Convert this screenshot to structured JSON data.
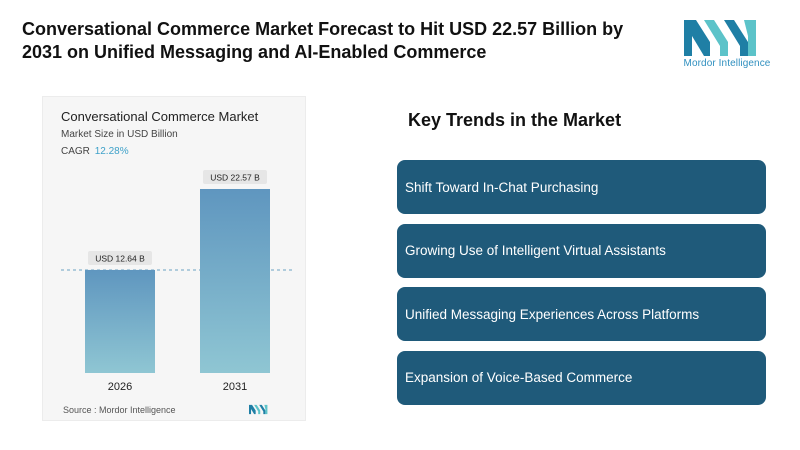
{
  "headline": "Conversational Commerce Market Forecast to Hit USD 22.57 Billion by 2031 on Unified Messaging and AI-Enabled Commerce",
  "brand": {
    "name": "Mordor Intelligence",
    "logo_icon": "mordor-intelligence-logo"
  },
  "chart_card": {
    "title": "Conversational Commerce Market",
    "subtitle": "Market Size in USD Billion",
    "cagr_label": "CAGR",
    "cagr_value": "12.28%",
    "source": "Source : Mordor Intelligence"
  },
  "chart_data": {
    "type": "bar",
    "title": "Conversational Commerce Market",
    "ylabel": "Market Size in USD Billion",
    "categories": [
      "2026",
      "2031"
    ],
    "values": [
      12.64,
      22.57
    ],
    "data_labels": [
      "USD 12.64 B",
      "USD 22.57 B"
    ],
    "ylim": [
      0,
      22.57
    ],
    "reference_line": 12.64,
    "grid": false,
    "colors": {
      "bar_top": "#5f96bf",
      "bar_bottom": "#8fc6d3",
      "label_bg": "#e6e6e6",
      "reference_line": "#6aa3c2"
    }
  },
  "trends": {
    "title": "Key Trends in the Market",
    "items": [
      "Shift Toward In-Chat Purchasing",
      "Growing Use of Intelligent Virtual Assistants",
      "Unified Messaging Experiences Across Platforms",
      "Expansion of Voice-Based Commerce"
    ]
  },
  "colors": {
    "trend_box": "#1f5a7a",
    "accent": "#3ea1c9"
  }
}
